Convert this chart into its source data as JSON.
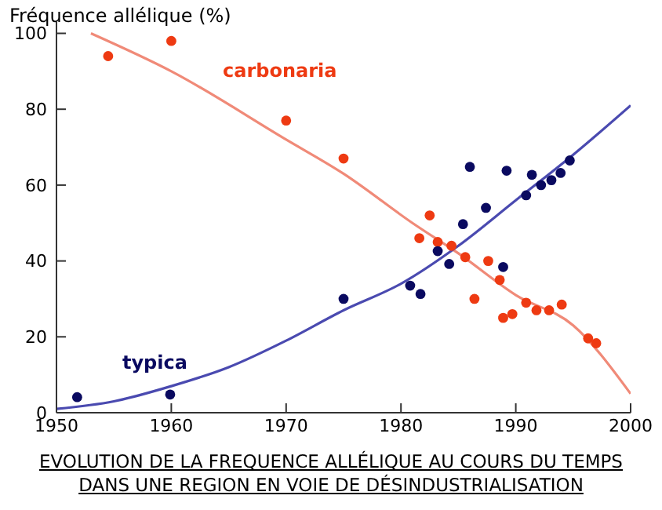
{
  "chart_data": {
    "type": "scatter",
    "title": "EVOLUTION DE LA FREQUENCE ALLÉLIQUE AU COURS DU TEMPS\nDANS UNE REGION EN VOIE DE DÉSINDUSTRIALISATION",
    "ylabel": "Fréquence allélique (%)",
    "xlim": [
      1950,
      2000
    ],
    "xticks": [
      1950,
      1960,
      1970,
      1980,
      1990,
      2000
    ],
    "ylim": [
      0,
      103
    ],
    "yticks": [
      0,
      20,
      40,
      60,
      80,
      100
    ],
    "legend": false,
    "series": [
      {
        "type": "line",
        "color": "#f08a78",
        "marker": "none",
        "line_style": "solid",
        "x": [
          1953,
          1960,
          1970,
          1975,
          1981,
          1985,
          1990,
          1995,
          2000
        ],
        "values": [
          100,
          90,
          72,
          63,
          50,
          42,
          31,
          23,
          5
        ]
      },
      {
        "type": "line",
        "color": "#4a4ab0",
        "marker": "none",
        "line_style": "solid",
        "x": [
          1950,
          1955,
          1960,
          1965,
          1970,
          1975,
          1980,
          1985,
          1990,
          1995,
          2000
        ],
        "values": [
          1,
          3,
          7,
          12,
          19,
          27,
          34,
          44,
          56,
          68,
          81
        ]
      },
      {
        "name": "carbonaria",
        "color": "#ee3a12",
        "marker": "circle",
        "x": [
          1954.5,
          1960,
          1970,
          1975,
          1981.6,
          1982.5,
          1983.2,
          1984.4,
          1985.6,
          1986.4,
          1987.6,
          1988.6,
          1988.9,
          1989.7,
          1990.9,
          1991.8,
          1992.9,
          1994,
          1996.3,
          1997
        ],
        "values": [
          94,
          98,
          77,
          67,
          46,
          52,
          45,
          44,
          41,
          30,
          40,
          35,
          25,
          26,
          29,
          27,
          27,
          28.5,
          19.6,
          18.3
        ]
      },
      {
        "name": "typica",
        "color": "#0a0a60",
        "marker": "circle",
        "x": [
          1951.8,
          1959.9,
          1975,
          1980.8,
          1981.7,
          1983.2,
          1984.2,
          1985.4,
          1986,
          1987.4,
          1988.9,
          1989.2,
          1990.9,
          1991.4,
          1992.2,
          1993.1,
          1993.9,
          1994.7
        ],
        "values": [
          4.1,
          4.8,
          30,
          33.5,
          31.3,
          42.6,
          39.2,
          49.7,
          64.8,
          54,
          38.4,
          63.8,
          57.3,
          62.7,
          60,
          61.3,
          63.2,
          66.5
        ]
      }
    ]
  }
}
